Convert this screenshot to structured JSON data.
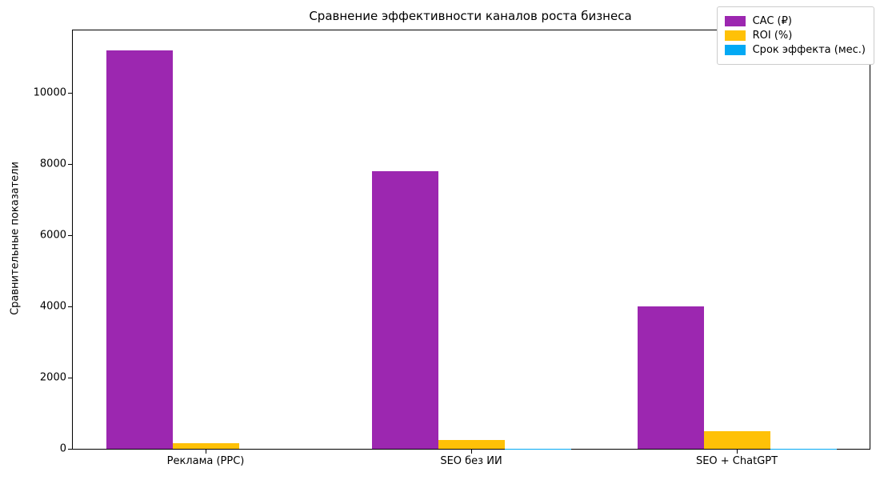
{
  "figure": {
    "title": "Сравнение эффективности каналов роста бизнеса",
    "ylabel": "Сравнительные показатели"
  },
  "chart_data": {
    "type": "bar",
    "title": "Сравнение эффективности каналов роста бизнеса",
    "xlabel": "",
    "ylabel": "Сравнительные показатели",
    "categories": [
      "Реклама (PPC)",
      "SEO без ИИ",
      "SEO + ChatGPT"
    ],
    "series": [
      {
        "name": "CAC (₽)",
        "color": "#9C27B0",
        "values": [
          11200,
          7800,
          4000
        ]
      },
      {
        "name": "ROI (%)",
        "color": "#FFC107",
        "values": [
          150,
          250,
          500
        ]
      },
      {
        "name": "Срок эффекта (мес.)",
        "color": "#03A9F4",
        "values": [
          1,
          3,
          6
        ]
      }
    ],
    "ylim": [
      0,
      11760
    ],
    "yticks": [
      0,
      2000,
      4000,
      6000,
      8000,
      10000
    ],
    "grid": false,
    "legend_position": "upper right",
    "bar_width_fraction": 0.25
  }
}
